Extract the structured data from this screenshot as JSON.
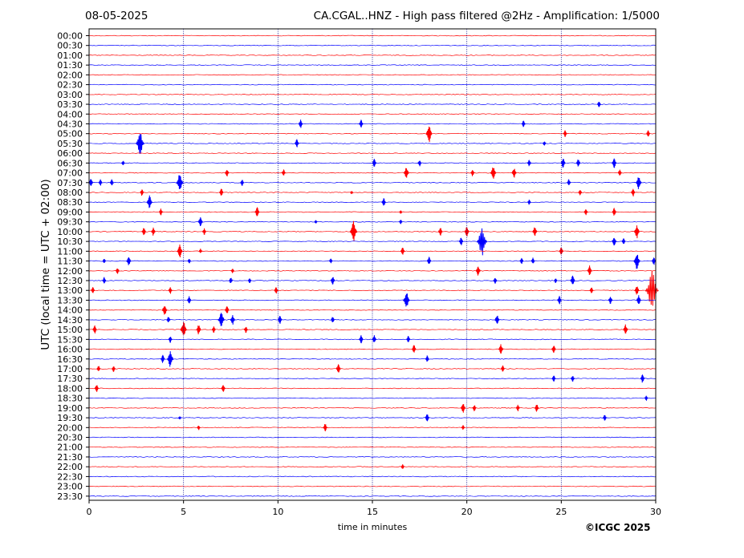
{
  "header": {
    "date": "08-05-2025",
    "title": "CA.CGAL..HNZ - High pass filtered @2Hz - Amplification: 1/5000"
  },
  "footer": {
    "copyright": "©ICGC 2025"
  },
  "colors": {
    "red": "#ff0000",
    "blue": "#0000ff",
    "grid": "#00008b",
    "axis": "#000000"
  },
  "chart_data": {
    "type": "line",
    "subtype": "helicorder",
    "xlabel": "time in minutes",
    "ylabel": "UTC (local time = UTC + 02:00)",
    "xlim": [
      0,
      30
    ],
    "xticks": [
      "0",
      "5",
      "10",
      "15",
      "20",
      "25",
      "30"
    ],
    "vertical_gridlines_at": [
      5,
      10,
      15,
      20,
      25
    ],
    "trace_colors_alternating": [
      "red",
      "blue"
    ],
    "rows": [
      "00:00",
      "00:30",
      "01:00",
      "01:30",
      "02:00",
      "02:30",
      "03:00",
      "03:30",
      "04:00",
      "04:30",
      "05:00",
      "05:30",
      "06:00",
      "06:30",
      "07:00",
      "07:30",
      "08:00",
      "08:30",
      "09:00",
      "09:30",
      "10:00",
      "10:30",
      "11:00",
      "11:30",
      "12:00",
      "12:30",
      "13:00",
      "13:30",
      "14:00",
      "14:30",
      "15:00",
      "15:30",
      "16:00",
      "16:30",
      "17:00",
      "17:30",
      "18:00",
      "18:30",
      "19:00",
      "19:30",
      "20:00",
      "20:30",
      "21:00",
      "21:30",
      "22:00",
      "22:30",
      "23:00",
      "23:30"
    ],
    "events": [
      {
        "row": "03:30",
        "minute": 27.0,
        "amp": 0.4
      },
      {
        "row": "04:30",
        "minute": 11.2,
        "amp": 0.5
      },
      {
        "row": "04:30",
        "minute": 14.4,
        "amp": 0.5
      },
      {
        "row": "04:30",
        "minute": 23.0,
        "amp": 0.4
      },
      {
        "row": "05:00",
        "minute": 18.0,
        "amp": 1.0
      },
      {
        "row": "05:00",
        "minute": 25.2,
        "amp": 0.4
      },
      {
        "row": "05:00",
        "minute": 29.6,
        "amp": 0.4
      },
      {
        "row": "05:30",
        "minute": 2.7,
        "amp": 1.4
      },
      {
        "row": "05:30",
        "minute": 11.0,
        "amp": 0.5
      },
      {
        "row": "05:30",
        "minute": 24.1,
        "amp": 0.3
      },
      {
        "row": "06:30",
        "minute": 1.8,
        "amp": 0.3
      },
      {
        "row": "06:30",
        "minute": 15.1,
        "amp": 0.5
      },
      {
        "row": "06:30",
        "minute": 17.5,
        "amp": 0.4
      },
      {
        "row": "06:30",
        "minute": 23.3,
        "amp": 0.4
      },
      {
        "row": "06:30",
        "minute": 25.1,
        "amp": 0.6
      },
      {
        "row": "06:30",
        "minute": 25.9,
        "amp": 0.5
      },
      {
        "row": "06:30",
        "minute": 27.8,
        "amp": 0.6
      },
      {
        "row": "07:00",
        "minute": 7.3,
        "amp": 0.5
      },
      {
        "row": "07:00",
        "minute": 10.3,
        "amp": 0.4
      },
      {
        "row": "07:00",
        "minute": 16.8,
        "amp": 0.7
      },
      {
        "row": "07:00",
        "minute": 20.3,
        "amp": 0.4
      },
      {
        "row": "07:00",
        "minute": 21.4,
        "amp": 0.8
      },
      {
        "row": "07:00",
        "minute": 22.5,
        "amp": 0.6
      },
      {
        "row": "07:00",
        "minute": 28.1,
        "amp": 0.4
      },
      {
        "row": "07:30",
        "minute": 0.1,
        "amp": 0.5
      },
      {
        "row": "07:30",
        "minute": 0.6,
        "amp": 0.4
      },
      {
        "row": "07:30",
        "minute": 1.2,
        "amp": 0.4
      },
      {
        "row": "07:30",
        "minute": 4.8,
        "amp": 1.1
      },
      {
        "row": "07:30",
        "minute": 8.1,
        "amp": 0.4
      },
      {
        "row": "07:30",
        "minute": 25.4,
        "amp": 0.4
      },
      {
        "row": "07:30",
        "minute": 29.1,
        "amp": 0.8
      },
      {
        "row": "08:00",
        "minute": 2.8,
        "amp": 0.4
      },
      {
        "row": "08:00",
        "minute": 7.0,
        "amp": 0.5
      },
      {
        "row": "08:00",
        "minute": 13.9,
        "amp": 0.2
      },
      {
        "row": "08:00",
        "minute": 26.0,
        "amp": 0.4
      },
      {
        "row": "08:00",
        "minute": 28.8,
        "amp": 0.5
      },
      {
        "row": "08:30",
        "minute": 3.2,
        "amp": 0.8
      },
      {
        "row": "08:30",
        "minute": 15.6,
        "amp": 0.5
      },
      {
        "row": "08:30",
        "minute": 23.3,
        "amp": 0.3
      },
      {
        "row": "09:00",
        "minute": 3.8,
        "amp": 0.4
      },
      {
        "row": "09:00",
        "minute": 8.9,
        "amp": 0.6
      },
      {
        "row": "09:00",
        "minute": 16.5,
        "amp": 0.2
      },
      {
        "row": "09:00",
        "minute": 26.3,
        "amp": 0.4
      },
      {
        "row": "09:00",
        "minute": 27.8,
        "amp": 0.5
      },
      {
        "row": "09:30",
        "minute": 5.9,
        "amp": 0.6
      },
      {
        "row": "09:30",
        "minute": 12.0,
        "amp": 0.2
      },
      {
        "row": "09:30",
        "minute": 16.5,
        "amp": 0.3
      },
      {
        "row": "10:00",
        "minute": 2.9,
        "amp": 0.5
      },
      {
        "row": "10:00",
        "minute": 3.4,
        "amp": 0.5
      },
      {
        "row": "10:00",
        "minute": 6.1,
        "amp": 0.4
      },
      {
        "row": "10:00",
        "minute": 14.0,
        "amp": 1.2
      },
      {
        "row": "10:00",
        "minute": 18.6,
        "amp": 0.5
      },
      {
        "row": "10:00",
        "minute": 20.0,
        "amp": 0.6
      },
      {
        "row": "10:00",
        "minute": 23.6,
        "amp": 0.6
      },
      {
        "row": "10:00",
        "minute": 29.0,
        "amp": 0.8
      },
      {
        "row": "10:30",
        "minute": 19.7,
        "amp": 0.5
      },
      {
        "row": "10:30",
        "minute": 20.8,
        "amp": 1.8
      },
      {
        "row": "10:30",
        "minute": 27.8,
        "amp": 0.6
      },
      {
        "row": "10:30",
        "minute": 28.3,
        "amp": 0.4
      },
      {
        "row": "11:00",
        "minute": 4.8,
        "amp": 0.8
      },
      {
        "row": "11:00",
        "minute": 5.9,
        "amp": 0.3
      },
      {
        "row": "11:00",
        "minute": 16.6,
        "amp": 0.5
      },
      {
        "row": "11:00",
        "minute": 25.0,
        "amp": 0.5
      },
      {
        "row": "11:30",
        "minute": 0.8,
        "amp": 0.3
      },
      {
        "row": "11:30",
        "minute": 2.1,
        "amp": 0.6
      },
      {
        "row": "11:30",
        "minute": 5.3,
        "amp": 0.3
      },
      {
        "row": "11:30",
        "minute": 12.8,
        "amp": 0.3
      },
      {
        "row": "11:30",
        "minute": 18.0,
        "amp": 0.5
      },
      {
        "row": "11:30",
        "minute": 22.9,
        "amp": 0.4
      },
      {
        "row": "11:30",
        "minute": 23.5,
        "amp": 0.4
      },
      {
        "row": "11:30",
        "minute": 29.0,
        "amp": 1.0
      },
      {
        "row": "11:30",
        "minute": 29.9,
        "amp": 0.5
      },
      {
        "row": "12:00",
        "minute": 1.5,
        "amp": 0.4
      },
      {
        "row": "12:00",
        "minute": 7.6,
        "amp": 0.3
      },
      {
        "row": "12:00",
        "minute": 20.6,
        "amp": 0.6
      },
      {
        "row": "12:00",
        "minute": 26.5,
        "amp": 0.6
      },
      {
        "row": "12:30",
        "minute": 0.8,
        "amp": 0.4
      },
      {
        "row": "12:30",
        "minute": 7.5,
        "amp": 0.4
      },
      {
        "row": "12:30",
        "minute": 8.5,
        "amp": 0.3
      },
      {
        "row": "12:30",
        "minute": 12.9,
        "amp": 0.5
      },
      {
        "row": "12:30",
        "minute": 21.5,
        "amp": 0.4
      },
      {
        "row": "12:30",
        "minute": 24.7,
        "amp": 0.3
      },
      {
        "row": "12:30",
        "minute": 25.6,
        "amp": 0.6
      },
      {
        "row": "13:00",
        "minute": 0.2,
        "amp": 0.4
      },
      {
        "row": "13:00",
        "minute": 4.3,
        "amp": 0.4
      },
      {
        "row": "13:00",
        "minute": 9.9,
        "amp": 0.4
      },
      {
        "row": "13:00",
        "minute": 26.6,
        "amp": 0.4
      },
      {
        "row": "13:00",
        "minute": 29.0,
        "amp": 0.6
      },
      {
        "row": "13:00",
        "minute": 29.8,
        "amp": 2.4
      },
      {
        "row": "13:30",
        "minute": 5.3,
        "amp": 0.5
      },
      {
        "row": "13:30",
        "minute": 16.8,
        "amp": 1.0
      },
      {
        "row": "13:30",
        "minute": 24.9,
        "amp": 0.5
      },
      {
        "row": "13:30",
        "minute": 27.6,
        "amp": 0.5
      },
      {
        "row": "13:30",
        "minute": 29.1,
        "amp": 0.6
      },
      {
        "row": "14:00",
        "minute": 4.0,
        "amp": 0.7
      },
      {
        "row": "14:00",
        "minute": 7.3,
        "amp": 0.5
      },
      {
        "row": "14:30",
        "minute": 4.2,
        "amp": 0.4
      },
      {
        "row": "14:30",
        "minute": 7.0,
        "amp": 1.0
      },
      {
        "row": "14:30",
        "minute": 7.6,
        "amp": 0.6
      },
      {
        "row": "14:30",
        "minute": 10.1,
        "amp": 0.5
      },
      {
        "row": "14:30",
        "minute": 12.9,
        "amp": 0.4
      },
      {
        "row": "14:30",
        "minute": 21.6,
        "amp": 0.6
      },
      {
        "row": "15:00",
        "minute": 0.3,
        "amp": 0.5
      },
      {
        "row": "15:00",
        "minute": 5.0,
        "amp": 1.0
      },
      {
        "row": "15:00",
        "minute": 5.8,
        "amp": 0.6
      },
      {
        "row": "15:00",
        "minute": 6.6,
        "amp": 0.4
      },
      {
        "row": "15:00",
        "minute": 8.3,
        "amp": 0.4
      },
      {
        "row": "15:00",
        "minute": 28.4,
        "amp": 0.6
      },
      {
        "row": "15:30",
        "minute": 4.3,
        "amp": 0.4
      },
      {
        "row": "15:30",
        "minute": 14.4,
        "amp": 0.5
      },
      {
        "row": "15:30",
        "minute": 15.1,
        "amp": 0.5
      },
      {
        "row": "15:30",
        "minute": 16.9,
        "amp": 0.4
      },
      {
        "row": "16:00",
        "minute": 17.2,
        "amp": 0.5
      },
      {
        "row": "16:00",
        "minute": 21.8,
        "amp": 0.6
      },
      {
        "row": "16:00",
        "minute": 24.6,
        "amp": 0.5
      },
      {
        "row": "16:30",
        "minute": 3.9,
        "amp": 0.5
      },
      {
        "row": "16:30",
        "minute": 4.3,
        "amp": 1.0
      },
      {
        "row": "16:30",
        "minute": 17.9,
        "amp": 0.4
      },
      {
        "row": "17:00",
        "minute": 0.5,
        "amp": 0.4
      },
      {
        "row": "17:00",
        "minute": 1.3,
        "amp": 0.4
      },
      {
        "row": "17:00",
        "minute": 13.2,
        "amp": 0.6
      },
      {
        "row": "17:00",
        "minute": 21.9,
        "amp": 0.4
      },
      {
        "row": "17:30",
        "minute": 24.6,
        "amp": 0.4
      },
      {
        "row": "17:30",
        "minute": 25.6,
        "amp": 0.4
      },
      {
        "row": "17:30",
        "minute": 29.3,
        "amp": 0.5
      },
      {
        "row": "18:00",
        "minute": 0.4,
        "amp": 0.5
      },
      {
        "row": "18:00",
        "minute": 7.1,
        "amp": 0.5
      },
      {
        "row": "18:30",
        "minute": 29.5,
        "amp": 0.3
      },
      {
        "row": "19:00",
        "minute": 19.8,
        "amp": 0.6
      },
      {
        "row": "19:00",
        "minute": 20.4,
        "amp": 0.4
      },
      {
        "row": "19:00",
        "minute": 22.7,
        "amp": 0.4
      },
      {
        "row": "19:00",
        "minute": 23.7,
        "amp": 0.5
      },
      {
        "row": "19:30",
        "minute": 4.8,
        "amp": 0.2
      },
      {
        "row": "19:30",
        "minute": 17.9,
        "amp": 0.5
      },
      {
        "row": "19:30",
        "minute": 27.3,
        "amp": 0.4
      },
      {
        "row": "20:00",
        "minute": 5.8,
        "amp": 0.3
      },
      {
        "row": "20:00",
        "minute": 12.5,
        "amp": 0.5
      },
      {
        "row": "20:00",
        "minute": 19.8,
        "amp": 0.3
      },
      {
        "row": "22:00",
        "minute": 16.6,
        "amp": 0.3
      }
    ]
  }
}
